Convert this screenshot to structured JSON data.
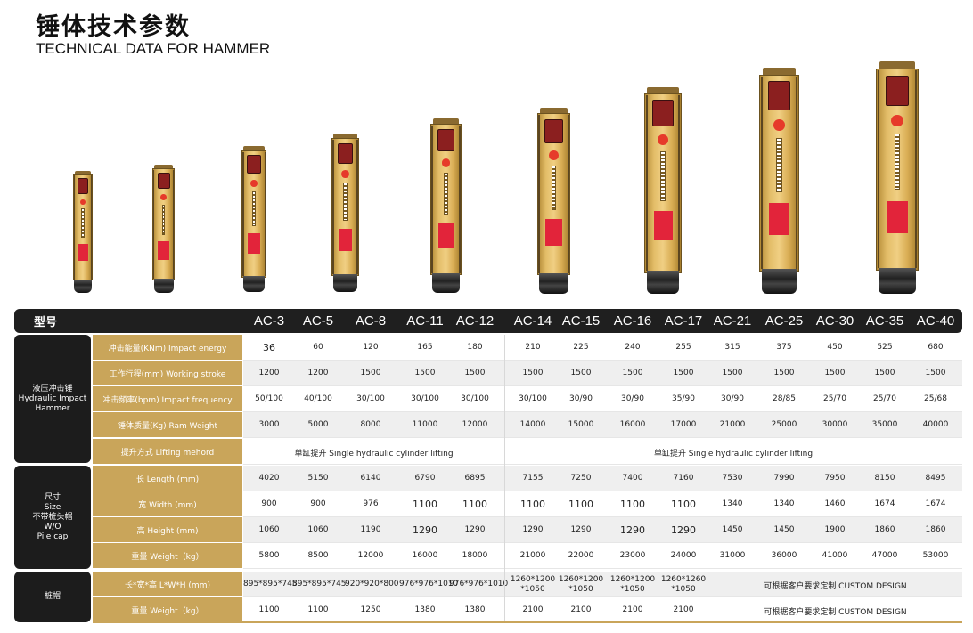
{
  "header": {
    "title_cn": "锤体技术参数",
    "title_en": "TECHNICAL DATA FOR HAMMER"
  },
  "table": {
    "corner_label": "型号",
    "models": [
      "AC-3",
      "AC-5",
      "AC-8",
      "AC-11",
      "AC-12",
      "AC-14",
      "AC-15",
      "AC-16",
      "AC-17",
      "AC-21",
      "AC-25",
      "AC-30",
      "AC-35",
      "AC-40"
    ],
    "groups": {
      "hydraulic": "液压冲击锤\nHydraulic Impact\nHammer",
      "size": "尺寸\nSize\n不带桩头帽\nW/O\nPile cap",
      "pilecap": "桩帽"
    },
    "rows": [
      {
        "label": "冲击能量(KNm)  Impact energy",
        "values": [
          "36",
          "60",
          "120",
          "165",
          "180",
          "210",
          "225",
          "240",
          "255",
          "315",
          "375",
          "450",
          "525",
          "680"
        ]
      },
      {
        "label": "工作行程(mm)  Working stroke",
        "values": [
          "1200",
          "1200",
          "1500",
          "1500",
          "1500",
          "1500",
          "1500",
          "1500",
          "1500",
          "1500",
          "1500",
          "1500",
          "1500",
          "1500"
        ]
      },
      {
        "label": "冲击频率(bpm)  Impact frequency",
        "values": [
          "50/100",
          "40/100",
          "30/100",
          "30/100",
          "30/100",
          "30/100",
          "30/90",
          "30/90",
          "35/90",
          "30/90",
          "28/85",
          "25/70",
          "25/70",
          "25/68"
        ]
      },
      {
        "label": "锤体质量(Kg)  Ram Weight",
        "values": [
          "3000",
          "5000",
          "8000",
          "11000",
          "12000",
          "14000",
          "15000",
          "16000",
          "17000",
          "21000",
          "25000",
          "30000",
          "35000",
          "40000"
        ]
      },
      {
        "label": "提升方式  Lifting mehord",
        "span_left": "单缸提升 Single hydraulic cylinder lifting",
        "span_right": "单缸提升 Single hydraulic cylinder lifting"
      },
      {
        "label": "长  Length (mm)",
        "values": [
          "4020",
          "5150",
          "6140",
          "6790",
          "6895",
          "7155",
          "7250",
          "7400",
          "7160",
          "7530",
          "7990",
          "7950",
          "8150",
          "8495"
        ]
      },
      {
        "label": "宽  Width (mm)",
        "values": [
          "900",
          "900",
          "976",
          "1100",
          "1100",
          "1100",
          "1100",
          "1100",
          "1100",
          "1340",
          "1340",
          "1460",
          "1674",
          "1674"
        ]
      },
      {
        "label": "高  Height (mm)",
        "values": [
          "1060",
          "1060",
          "1190",
          "1290",
          "1290",
          "1290",
          "1290",
          "1290",
          "1290",
          "1450",
          "1450",
          "1900",
          "1860",
          "1860"
        ]
      },
      {
        "label": "重量  Weight（kg）",
        "values": [
          "5800",
          "8500",
          "12000",
          "16000",
          "18000",
          "21000",
          "22000",
          "23000",
          "24000",
          "31000",
          "36000",
          "41000",
          "47000",
          "53000"
        ]
      },
      {
        "label": "长*宽*高  L*W*H (mm)",
        "values": [
          "895*895*745",
          "895*895*745",
          "920*920*800",
          "976*976*1010",
          "976*976*1010",
          "1260*1200\n*1050",
          "1260*1200\n*1050",
          "1260*1200\n*1050",
          "1260*1260\n*1050"
        ],
        "custom": "可根据客户要求定制 CUSTOM DESIGN"
      },
      {
        "label": "重量  Weight（kg）",
        "values": [
          "1100",
          "1100",
          "1250",
          "1380",
          "1380",
          "2100",
          "2100",
          "2100",
          "2100"
        ],
        "custom": "可根据客户要求定制 CUSTOM DESIGN"
      }
    ]
  }
}
